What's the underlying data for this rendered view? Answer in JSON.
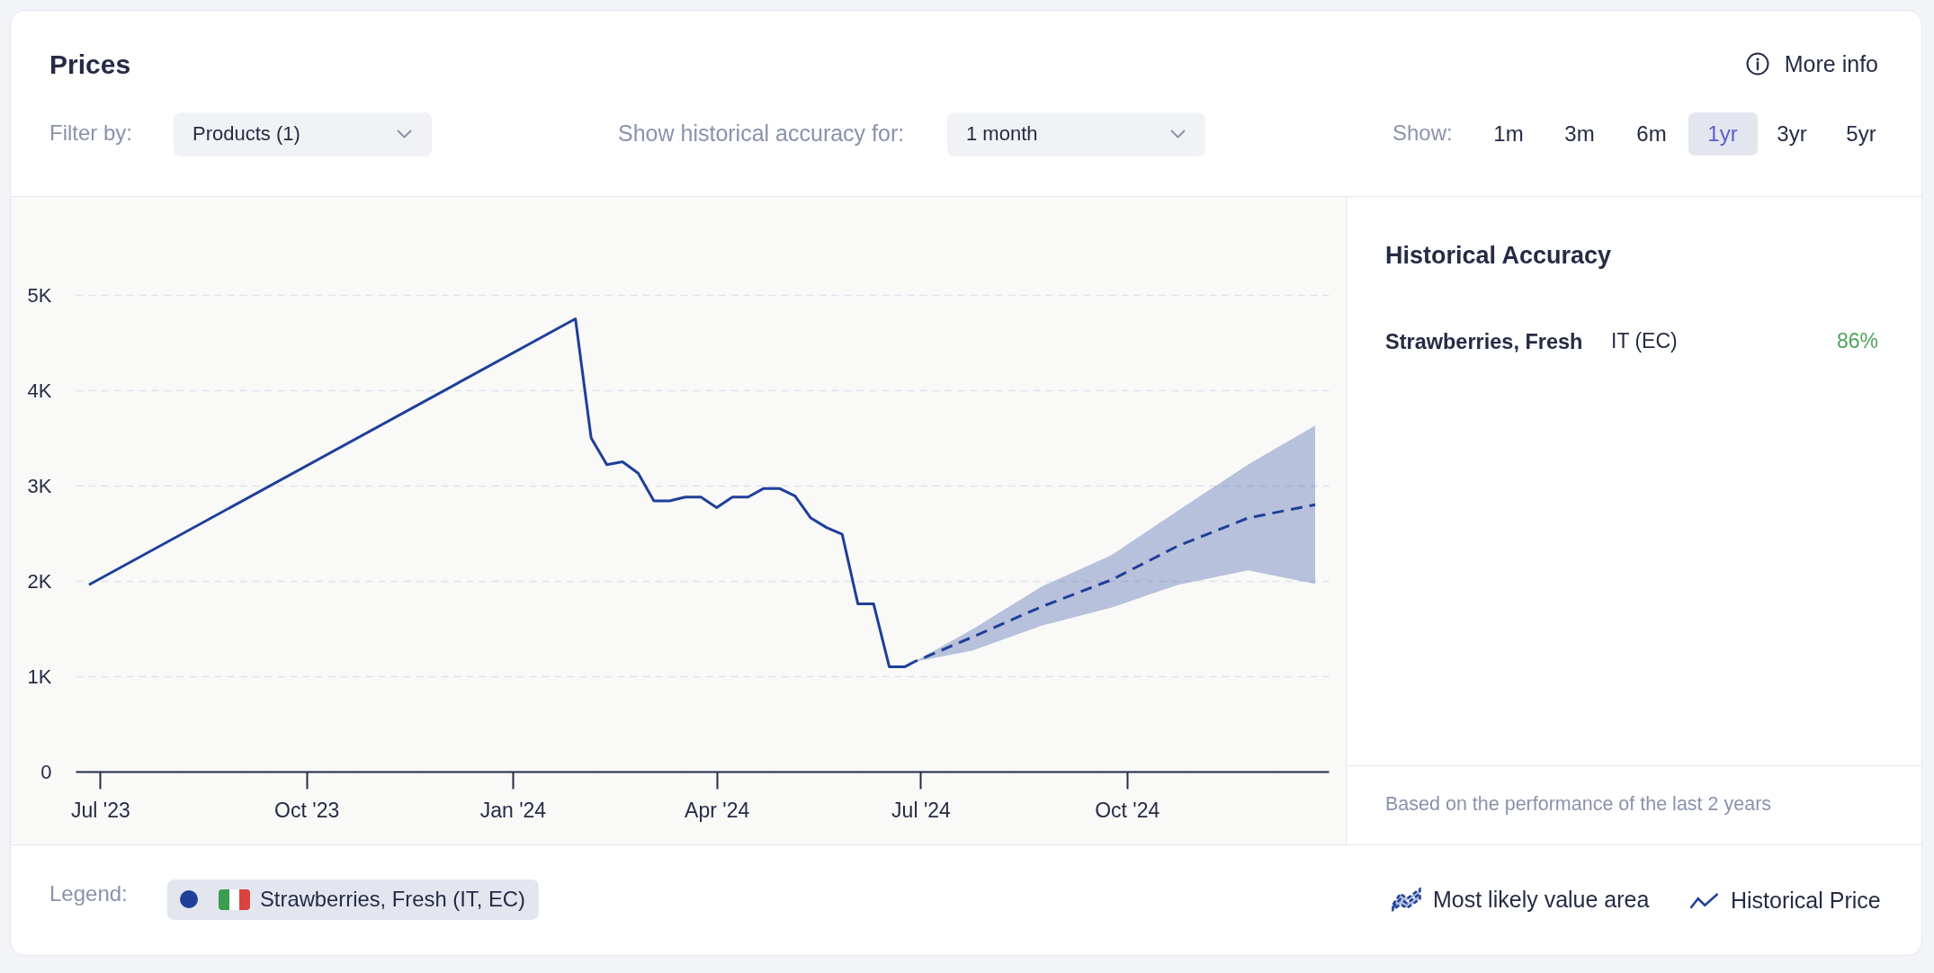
{
  "chart_data": [
    {
      "type": "line",
      "title": "Prices",
      "annotations": [
        "More info",
        "Filter by:",
        "Products (1)",
        "Show historical accuracy for:",
        "1 month",
        "Show:",
        "1m",
        "3m",
        "6m",
        "1yr",
        "3yr",
        "5yr",
        "Legend:",
        "Strawberries, Fresh (IT, EC)"
      ],
      "xlim": [
        "2023-06-20",
        "2024-12-30"
      ],
      "xticks": [
        {
          "value": "2023-07-01",
          "label": "Jul '23"
        },
        {
          "value": "2023-10-01",
          "label": "Oct '23"
        },
        {
          "value": "2024-01-01",
          "label": "Jan '24"
        },
        {
          "value": "2024-04-01",
          "label": "Apr '24"
        },
        {
          "value": "2024-07-01",
          "label": "Jul '24"
        },
        {
          "value": "2024-10-01",
          "label": "Oct '24"
        }
      ],
      "ylim": [
        0,
        5000
      ],
      "yticks": [
        0,
        {
          "value": 1000,
          "label": "1K"
        },
        {
          "value": 2000,
          "label": "2K"
        },
        {
          "value": 3000,
          "label": "3K"
        },
        {
          "value": 4000,
          "label": "4K"
        },
        {
          "value": 5000,
          "label": "5K"
        }
      ],
      "grid": "y",
      "legend": "bottom right",
      "series": [
        {
          "name": "Most likely value area",
          "color": "#1f3f99",
          "line_style": "dashed",
          "x": [
            "2024-06-28",
            "2024-07-24",
            "2024-08-24",
            "2024-09-24",
            "2024-10-24",
            "2024-11-24",
            "2024-12-24"
          ],
          "values": [
            1150,
            1410,
            1730,
            2010,
            2370,
            2660,
            2800
          ],
          "lower": [
            1150,
            1270,
            1530,
            1720,
            1960,
            2110,
            1970
          ],
          "upper": [
            1150,
            1490,
            1940,
            2270,
            2740,
            3220,
            3630
          ]
        },
        {
          "name": "Historical Price",
          "color": "#1f3f99",
          "line_style": "solid",
          "x": [
            "2023-06-26",
            "2024-01-29",
            "2024-02-05",
            "2024-02-12",
            "2024-02-19",
            "2024-02-26",
            "2024-03-04",
            "2024-03-11",
            "2024-03-18",
            "2024-03-25",
            "2024-04-01",
            "2024-04-08",
            "2024-04-15",
            "2024-04-22",
            "2024-04-29",
            "2024-05-06",
            "2024-05-13",
            "2024-05-20",
            "2024-05-27",
            "2024-06-03",
            "2024-06-10",
            "2024-06-17",
            "2024-06-24",
            "2024-06-28"
          ],
          "values": [
            1960,
            4750,
            3500,
            3220,
            3250,
            3130,
            2840,
            2840,
            2880,
            2880,
            2770,
            2880,
            2880,
            2970,
            2970,
            2890,
            2660,
            2560,
            2490,
            1760,
            1760,
            1100,
            1100,
            1150
          ]
        }
      ]
    },
    {
      "type": "other",
      "title": "Historical Accuracy",
      "annotations": [
        "Strawberries, Fresh",
        "IT (EC)",
        "86%",
        "Based on the performance of the last 2 years"
      ]
    }
  ]
}
